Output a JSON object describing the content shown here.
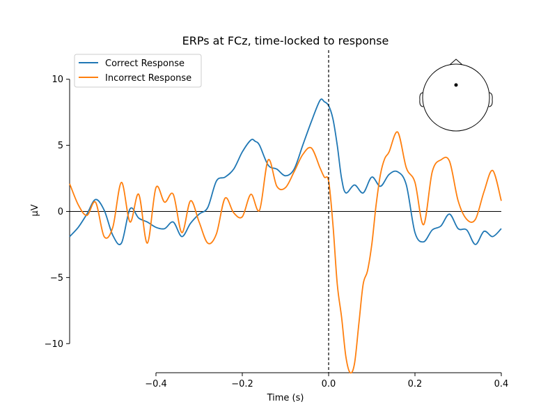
{
  "chart_data": {
    "type": "line",
    "title": "ERPs at FCz, time-locked to response",
    "xlabel": "Time (s)",
    "ylabel": "µV",
    "xlim": [
      -0.6,
      0.4
    ],
    "ylim": [
      -12.2,
      12.2
    ],
    "xticks": [
      -0.4,
      -0.2,
      0.0,
      0.2,
      0.4
    ],
    "xtick_labels": [
      "−0.4",
      "−0.2",
      "0.0",
      "0.2",
      "0.4"
    ],
    "yticks": [
      10,
      5,
      0,
      -5,
      -10
    ],
    "ytick_labels": [
      "10",
      "5",
      "0",
      "−5",
      "−10"
    ],
    "vline_x": 0.0,
    "hline_y": 0.0,
    "legend_position": "upper-left",
    "inset": "head-sensor-map",
    "series": [
      {
        "name": "Correct Response",
        "color": "#1f77b4",
        "x": [
          -0.6,
          -0.58,
          -0.56,
          -0.54,
          -0.52,
          -0.5,
          -0.48,
          -0.46,
          -0.44,
          -0.42,
          -0.4,
          -0.38,
          -0.36,
          -0.34,
          -0.32,
          -0.3,
          -0.28,
          -0.26,
          -0.24,
          -0.22,
          -0.2,
          -0.18,
          -0.17,
          -0.16,
          -0.14,
          -0.12,
          -0.1,
          -0.08,
          -0.06,
          -0.04,
          -0.02,
          -0.01,
          0.0,
          0.01,
          0.02,
          0.03,
          0.04,
          0.06,
          0.08,
          0.1,
          0.12,
          0.14,
          0.16,
          0.18,
          0.2,
          0.22,
          0.24,
          0.26,
          0.28,
          0.3,
          0.32,
          0.34,
          0.36,
          0.38,
          0.4
        ],
        "values": [
          -1.9,
          -1.2,
          -0.2,
          0.9,
          0.1,
          -1.8,
          -2.4,
          0.2,
          -0.5,
          -0.8,
          -1.2,
          -1.3,
          -0.8,
          -1.9,
          -0.9,
          -0.2,
          0.3,
          2.3,
          2.6,
          3.2,
          4.5,
          5.4,
          5.3,
          5.0,
          3.5,
          3.2,
          2.7,
          3.2,
          5.0,
          6.8,
          8.4,
          8.3,
          8.0,
          7.0,
          5.0,
          2.5,
          1.4,
          2.0,
          1.4,
          2.6,
          1.9,
          2.8,
          3.0,
          2.0,
          -1.6,
          -2.3,
          -1.4,
          -1.1,
          -0.2,
          -1.3,
          -1.4,
          -2.5,
          -1.5,
          -1.9,
          -1.3
        ]
      },
      {
        "name": "Incorrect Response",
        "color": "#ff7f0e",
        "x": [
          -0.6,
          -0.58,
          -0.56,
          -0.54,
          -0.52,
          -0.5,
          -0.48,
          -0.46,
          -0.44,
          -0.42,
          -0.4,
          -0.38,
          -0.36,
          -0.34,
          -0.32,
          -0.3,
          -0.28,
          -0.26,
          -0.24,
          -0.22,
          -0.2,
          -0.18,
          -0.16,
          -0.14,
          -0.12,
          -0.1,
          -0.08,
          -0.06,
          -0.04,
          -0.02,
          -0.01,
          0.0,
          0.01,
          0.02,
          0.03,
          0.04,
          0.05,
          0.06,
          0.07,
          0.08,
          0.09,
          0.1,
          0.11,
          0.12,
          0.13,
          0.14,
          0.16,
          0.18,
          0.2,
          0.22,
          0.24,
          0.26,
          0.28,
          0.3,
          0.32,
          0.34,
          0.36,
          0.38,
          0.4
        ],
        "values": [
          2.1,
          0.5,
          -0.3,
          0.7,
          -1.9,
          -1.2,
          2.2,
          -0.8,
          1.3,
          -2.4,
          1.8,
          0.7,
          1.3,
          -1.6,
          0.8,
          -0.8,
          -2.4,
          -1.7,
          1.0,
          -0.1,
          -0.4,
          1.3,
          0.1,
          3.9,
          1.9,
          1.8,
          3.0,
          4.3,
          4.8,
          3.3,
          2.6,
          2.3,
          -1.0,
          -5.5,
          -8.0,
          -11.0,
          -12.2,
          -11.5,
          -8.5,
          -5.5,
          -4.5,
          -2.5,
          0.5,
          2.8,
          4.0,
          4.5,
          6.0,
          3.3,
          2.2,
          -1.0,
          3.0,
          3.9,
          3.8,
          0.8,
          -0.6,
          -0.6,
          1.5,
          3.1,
          0.8
        ]
      }
    ]
  }
}
